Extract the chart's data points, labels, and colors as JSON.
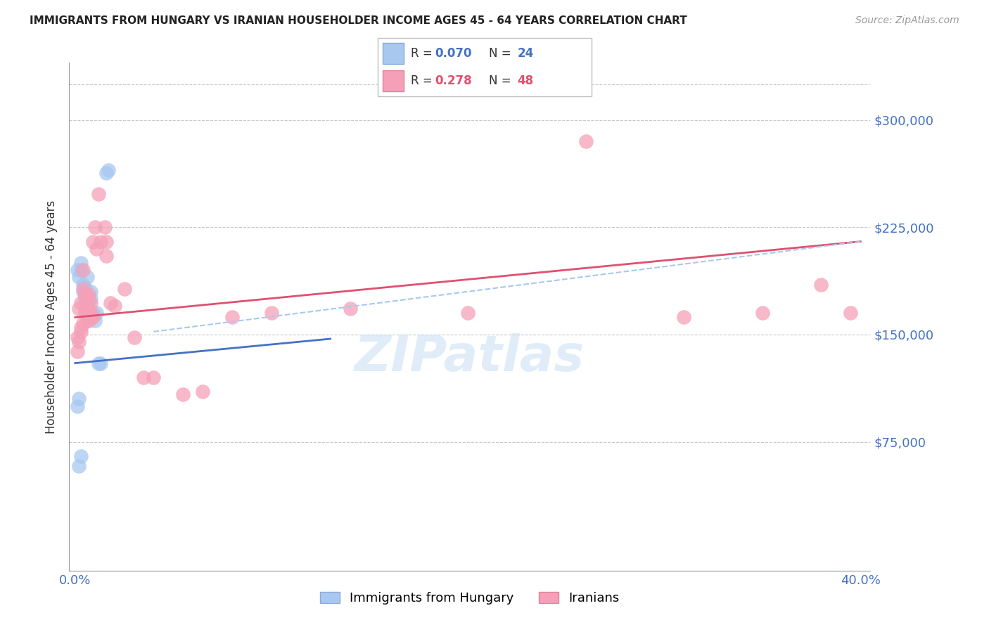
{
  "title": "IMMIGRANTS FROM HUNGARY VS IRANIAN HOUSEHOLDER INCOME AGES 45 - 64 YEARS CORRELATION CHART",
  "source": "Source: ZipAtlas.com",
  "ylabel": "Householder Income Ages 45 - 64 years",
  "ytick_vals": [
    0,
    75000,
    150000,
    225000,
    300000
  ],
  "ytick_labels": [
    "",
    "$75,000",
    "$150,000",
    "$225,000",
    "$300,000"
  ],
  "ylim": [
    -15000,
    340000
  ],
  "xlim": [
    -0.003,
    0.405
  ],
  "title_color": "#222222",
  "axis_label_color": "#4472c4",
  "grid_color": "#c8c8c8",
  "watermark": "ZIPatlas",
  "scatter_color_hungary": "#a8c8f0",
  "scatter_color_iran": "#f5a0b8",
  "line_color_hungary": "#4472c4",
  "line_color_iran": "#e05070",
  "line_color_dashed": "#a8c8f0",
  "hungary_scatter_x": [
    0.001,
    0.002,
    0.003,
    0.003,
    0.004,
    0.004,
    0.005,
    0.005,
    0.005,
    0.006,
    0.007,
    0.008,
    0.008,
    0.009,
    0.01,
    0.011,
    0.012,
    0.013,
    0.016,
    0.017,
    0.001,
    0.002,
    0.002,
    0.003
  ],
  "hungary_scatter_y": [
    195000,
    190000,
    195000,
    200000,
    180000,
    185000,
    178000,
    183000,
    175000,
    190000,
    175000,
    175000,
    180000,
    165000,
    160000,
    165000,
    130000,
    130000,
    263000,
    265000,
    100000,
    105000,
    58000,
    65000
  ],
  "iran_scatter_x": [
    0.001,
    0.002,
    0.003,
    0.003,
    0.004,
    0.004,
    0.005,
    0.005,
    0.006,
    0.006,
    0.007,
    0.007,
    0.008,
    0.008,
    0.009,
    0.01,
    0.011,
    0.012,
    0.013,
    0.015,
    0.016,
    0.016,
    0.018,
    0.02,
    0.025,
    0.03,
    0.035,
    0.04,
    0.055,
    0.065,
    0.08,
    0.1,
    0.14,
    0.2,
    0.26,
    0.31,
    0.35,
    0.38,
    0.395,
    0.001,
    0.002,
    0.003,
    0.004,
    0.005,
    0.006,
    0.007,
    0.008,
    0.009
  ],
  "iran_scatter_y": [
    148000,
    168000,
    155000,
    172000,
    182000,
    195000,
    167000,
    178000,
    160000,
    175000,
    165000,
    178000,
    172000,
    162000,
    215000,
    225000,
    210000,
    248000,
    215000,
    225000,
    205000,
    215000,
    172000,
    170000,
    182000,
    148000,
    120000,
    120000,
    108000,
    110000,
    162000,
    165000,
    168000,
    165000,
    285000,
    162000,
    165000,
    185000,
    165000,
    138000,
    145000,
    152000,
    158000,
    165000,
    170000,
    160000,
    165000,
    162000
  ],
  "hungary_line_x": [
    0.0,
    0.13
  ],
  "hungary_line_y": [
    130000,
    147000
  ],
  "iran_line_x": [
    0.0,
    0.4
  ],
  "iran_line_y": [
    162000,
    215000
  ],
  "dashed_line_x": [
    0.04,
    0.4
  ],
  "dashed_line_y": [
    152000,
    215000
  ],
  "legend_r1": "0.070",
  "legend_n1": "24",
  "legend_r2": "0.278",
  "legend_n2": "48",
  "legend_bottom": [
    "Immigrants from Hungary",
    "Iranians"
  ]
}
